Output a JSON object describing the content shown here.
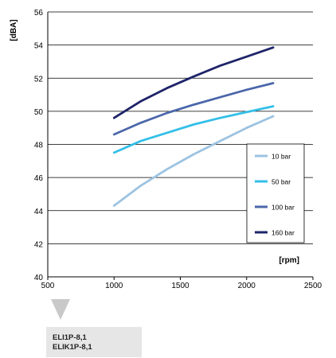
{
  "chart_data": {
    "type": "line",
    "ylabel": "[dBA]",
    "xlabel": "[rpm]",
    "xlim": [
      500,
      2500
    ],
    "ylim": [
      40,
      56
    ],
    "xticks": [
      500,
      1000,
      1500,
      2000,
      2500
    ],
    "yticks": [
      40,
      42,
      44,
      46,
      48,
      50,
      52,
      54,
      56
    ],
    "grid": "horizontal",
    "legend_position": "right",
    "series": [
      {
        "name": "10 bar",
        "color": "#9cc3e2",
        "x": [
          1000,
          1200,
          1400,
          1600,
          1800,
          2000,
          2200
        ],
        "y": [
          44.3,
          45.5,
          46.5,
          47.4,
          48.2,
          49.0,
          49.7
        ]
      },
      {
        "name": "50 bar",
        "color": "#33bfe8",
        "x": [
          1000,
          1200,
          1400,
          1600,
          1800,
          2000,
          2200
        ],
        "y": [
          47.5,
          48.2,
          48.7,
          49.2,
          49.6,
          49.95,
          50.3
        ]
      },
      {
        "name": "100 bar",
        "color": "#4b67aa",
        "x": [
          1000,
          1200,
          1400,
          1600,
          1800,
          2000,
          2200
        ],
        "y": [
          48.6,
          49.3,
          49.9,
          50.4,
          50.85,
          51.3,
          51.7
        ]
      },
      {
        "name": "160 bar",
        "color": "#1e2469",
        "x": [
          1000,
          1200,
          1400,
          1600,
          1800,
          2000,
          2200
        ],
        "y": [
          49.6,
          50.6,
          51.4,
          52.1,
          52.75,
          53.3,
          53.85
        ]
      }
    ]
  },
  "models": [
    "ELI1P-8,1",
    "ELIK1P-8,1"
  ]
}
